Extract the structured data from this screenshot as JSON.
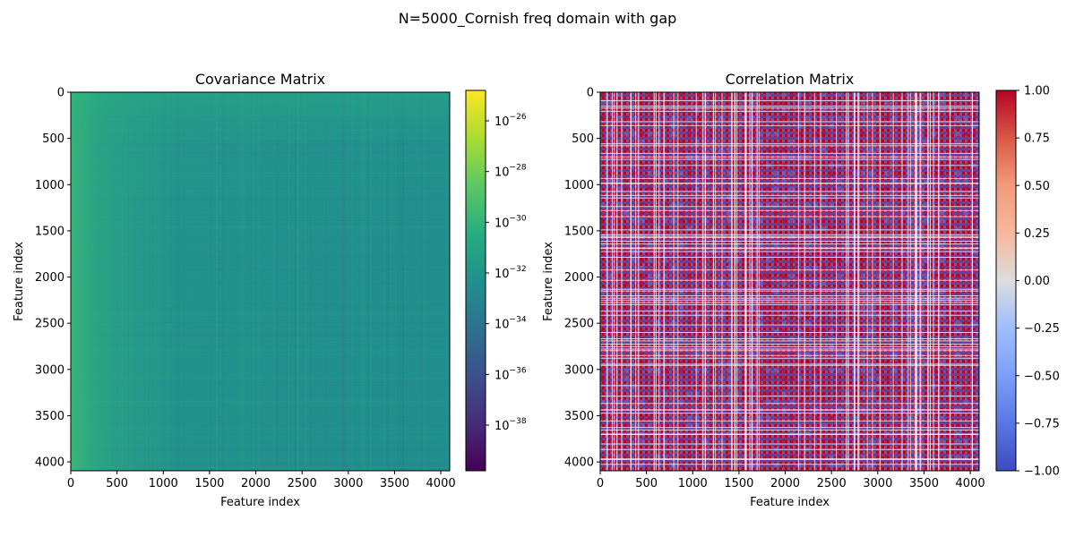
{
  "figure": {
    "suptitle": "N=5000_Cornish freq domain with gap"
  },
  "chart_data": [
    {
      "type": "heatmap",
      "title": "Covariance Matrix",
      "xlabel": "Feature index",
      "ylabel": "Feature index",
      "xlim": [
        0,
        4096
      ],
      "ylim": [
        4096,
        0
      ],
      "x_ticks": [
        0,
        500,
        1000,
        1500,
        2000,
        2500,
        3000,
        3500,
        4000
      ],
      "y_ticks": [
        0,
        500,
        1000,
        1500,
        2000,
        2500,
        3000,
        3500,
        4000
      ],
      "colormap": "viridis",
      "color_scale": "log",
      "colorbar_range_log10": [
        -39.8,
        -24.8
      ],
      "colorbar_ticks": [
        {
          "base": "10",
          "exp": "−26",
          "log10": -26
        },
        {
          "base": "10",
          "exp": "−28",
          "log10": -28
        },
        {
          "base": "10",
          "exp": "−30",
          "log10": -30
        },
        {
          "base": "10",
          "exp": "−32",
          "log10": -32
        },
        {
          "base": "10",
          "exp": "−34",
          "log10": -34
        },
        {
          "base": "10",
          "exp": "−36",
          "log10": -36
        },
        {
          "base": "10",
          "exp": "−38",
          "log10": -38
        }
      ],
      "dominant_colors": [
        "#21908d",
        "#2a788e",
        "#31b57b",
        "#3aba76"
      ],
      "grid": false
    },
    {
      "type": "heatmap",
      "title": "Correlation Matrix",
      "xlabel": "Feature index",
      "ylabel": "Feature index",
      "xlim": [
        0,
        4096
      ],
      "ylim": [
        4096,
        0
      ],
      "x_ticks": [
        0,
        500,
        1000,
        1500,
        2000,
        2500,
        3000,
        3500,
        4000
      ],
      "y_ticks": [
        0,
        500,
        1000,
        1500,
        2000,
        2500,
        3000,
        3500,
        4000
      ],
      "colormap": "coolwarm",
      "color_scale": "linear",
      "colorbar_range": [
        -1.0,
        1.0
      ],
      "colorbar_ticks": [
        "1.00",
        "0.75",
        "0.50",
        "0.25",
        "0.00",
        "−0.25",
        "−0.50",
        "−0.75",
        "−1.00"
      ],
      "dominant_colors": [
        "#b40426",
        "#3b4cc0",
        "#6a7cd4",
        "#ffffff"
      ],
      "grid": false
    }
  ]
}
